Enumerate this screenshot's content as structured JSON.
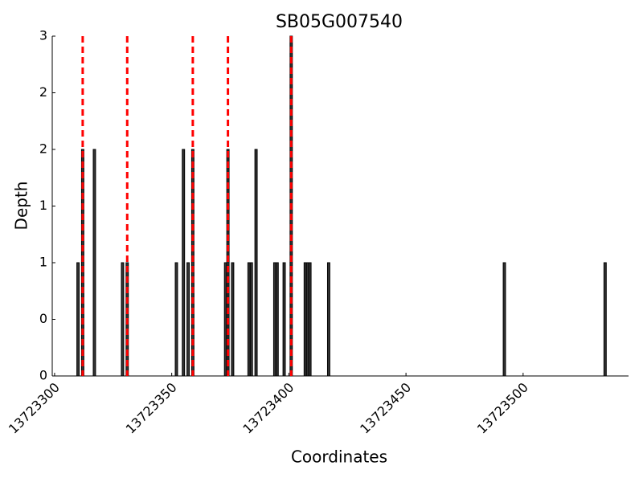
{
  "chart_data": {
    "type": "bar",
    "title": "SB05G007540",
    "x_label": "Coordinates",
    "y_label": "Depth",
    "x": [
      13723310,
      13723312,
      13723317,
      13723329,
      13723331,
      13723352,
      13723355,
      13723357,
      13723359,
      13723373,
      13723374,
      13723376,
      13723383,
      13723384,
      13723386,
      13723394,
      13723395,
      13723398,
      13723401,
      13723407,
      13723408,
      13723409,
      13723417,
      13723492,
      13723535
    ],
    "values": [
      1,
      2,
      2,
      1,
      1,
      1,
      2,
      1,
      2,
      1,
      2,
      1,
      1,
      1,
      2,
      1,
      1,
      1,
      3,
      1,
      1,
      1,
      1,
      1,
      1
    ],
    "color": "#333333",
    "markers": [
      13723312,
      13723331,
      13723359,
      13723374,
      13723401
    ],
    "marker_color": "#ff0000",
    "xlim": [
      13723299,
      13723545
    ],
    "xticks": [
      13723300,
      13723350,
      13723400,
      13723450,
      13723500
    ],
    "ylim": [
      0,
      3
    ],
    "yticks": [
      0,
      {
        "value": 0.5,
        "label": "0"
      },
      1,
      {
        "value": 1.5,
        "label": "1"
      },
      2,
      {
        "value": 2.5,
        "label": "2"
      },
      3
    ]
  }
}
